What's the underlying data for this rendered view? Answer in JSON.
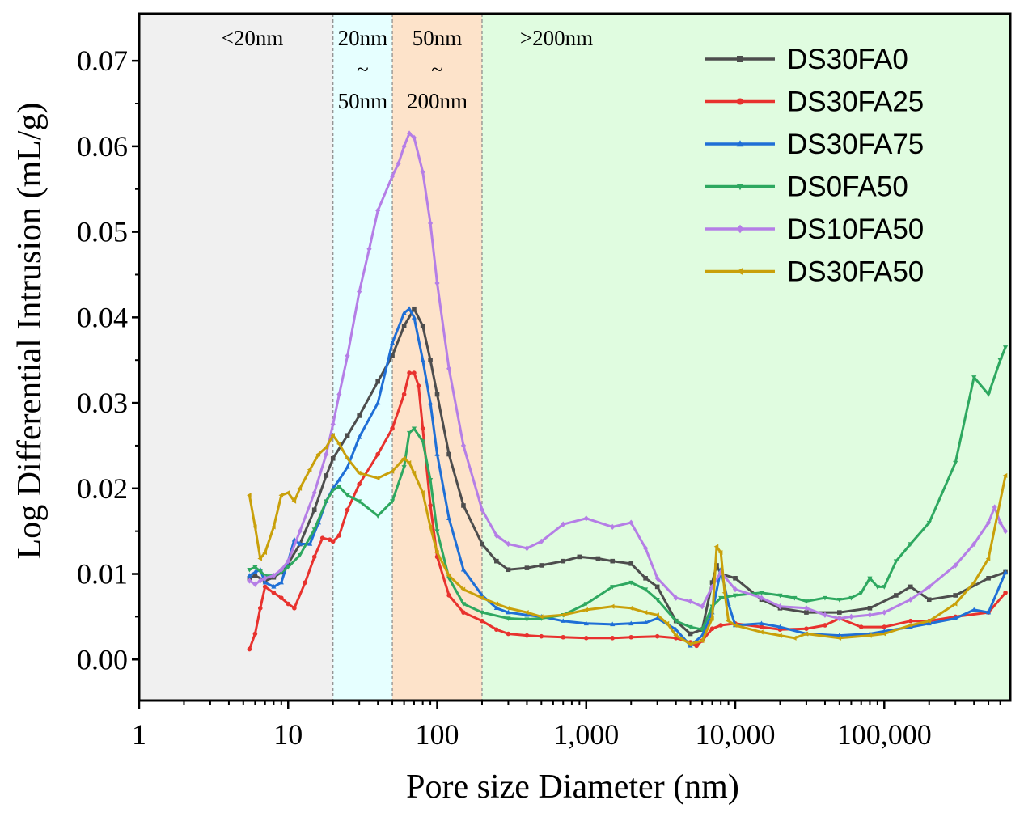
{
  "chart_data": {
    "type": "line",
    "xscale": "log",
    "xlabel": "Pore size Diameter (nm)",
    "ylabel": "Log Differential Intrusion (mL/g)",
    "xlim": [
      1,
      700000
    ],
    "ylim": [
      -0.0048,
      0.0755
    ],
    "x_ticks": [
      {
        "value": 1,
        "label": "1"
      },
      {
        "value": 10,
        "label": "10"
      },
      {
        "value": 100,
        "label": "100"
      },
      {
        "value": 1000,
        "label": "1,000"
      },
      {
        "value": 10000,
        "label": "10,000"
      },
      {
        "value": 100000,
        "label": "100,000"
      }
    ],
    "y_ticks": [
      {
        "value": 0.0,
        "label": "0.00"
      },
      {
        "value": 0.01,
        "label": "0.01"
      },
      {
        "value": 0.02,
        "label": "0.02"
      },
      {
        "value": 0.03,
        "label": "0.03"
      },
      {
        "value": 0.04,
        "label": "0.04"
      },
      {
        "value": 0.05,
        "label": "0.05"
      },
      {
        "value": 0.06,
        "label": "0.06"
      },
      {
        "value": 0.07,
        "label": "0.07"
      }
    ],
    "regions": [
      {
        "from": 1,
        "to": 20,
        "color": "#f0f0f0",
        "label_lines": [
          "<20nm"
        ]
      },
      {
        "from": 20,
        "to": 50,
        "color": "#e6ffff",
        "label_lines": [
          "20nm",
          "~",
          "50nm"
        ]
      },
      {
        "from": 50,
        "to": 200,
        "color": "#fde3ca",
        "label_lines": [
          "50nm",
          "~",
          "200nm"
        ]
      },
      {
        "from": 200,
        "to": 700000,
        "color": "#e0fce0",
        "label_lines": [
          ">200nm"
        ]
      }
    ],
    "legend_position": "top-right",
    "series": [
      {
        "name": "DS30FA0",
        "color": "#4d4d4d",
        "marker": "square",
        "x": [
          5.5,
          6,
          7,
          8,
          9,
          10,
          12,
          15,
          18,
          20,
          25,
          30,
          40,
          50,
          60,
          70,
          80,
          90,
          100,
          120,
          150,
          200,
          250,
          300,
          400,
          500,
          700,
          900,
          1200,
          1500,
          2000,
          2500,
          3000,
          4000,
          5000,
          6000,
          7000,
          7500,
          8000,
          10000,
          15000,
          20000,
          30000,
          50000,
          80000,
          120000,
          150000,
          200000,
          300000,
          500000,
          650000
        ],
        "values": [
          0.0095,
          0.0098,
          0.0092,
          0.0096,
          0.0102,
          0.0112,
          0.0135,
          0.0175,
          0.0215,
          0.0235,
          0.0262,
          0.0285,
          0.0325,
          0.0355,
          0.039,
          0.041,
          0.039,
          0.035,
          0.031,
          0.024,
          0.018,
          0.0135,
          0.0115,
          0.0105,
          0.0107,
          0.011,
          0.0115,
          0.012,
          0.0118,
          0.0115,
          0.0112,
          0.0095,
          0.0085,
          0.0045,
          0.003,
          0.0035,
          0.009,
          0.011,
          0.01,
          0.0095,
          0.007,
          0.006,
          0.0055,
          0.0055,
          0.006,
          0.0075,
          0.0085,
          0.007,
          0.0075,
          0.0095,
          0.0102
        ]
      },
      {
        "name": "DS30FA25",
        "color": "#e8322e",
        "marker": "circle",
        "x": [
          5.5,
          6,
          6.5,
          7,
          8,
          9,
          10,
          11,
          13,
          15,
          17,
          19,
          20,
          22,
          25,
          30,
          40,
          50,
          60,
          65,
          70,
          75,
          80,
          90,
          100,
          120,
          150,
          200,
          250,
          300,
          400,
          500,
          700,
          1000,
          1500,
          2000,
          3000,
          4000,
          5000,
          5500,
          6000,
          7000,
          8000,
          10000,
          15000,
          20000,
          30000,
          40000,
          50000,
          70000,
          100000,
          150000,
          200000,
          300000,
          500000,
          650000
        ],
        "values": [
          0.0012,
          0.003,
          0.006,
          0.0085,
          0.0078,
          0.0072,
          0.0065,
          0.006,
          0.009,
          0.012,
          0.0142,
          0.014,
          0.0138,
          0.0145,
          0.0175,
          0.0205,
          0.024,
          0.027,
          0.031,
          0.0335,
          0.0335,
          0.032,
          0.027,
          0.018,
          0.012,
          0.0075,
          0.0055,
          0.0045,
          0.0035,
          0.003,
          0.0028,
          0.0027,
          0.0026,
          0.0025,
          0.0025,
          0.0026,
          0.0027,
          0.0025,
          0.002,
          0.0016,
          0.0022,
          0.0036,
          0.004,
          0.0042,
          0.0038,
          0.0035,
          0.0036,
          0.004,
          0.0048,
          0.0038,
          0.0038,
          0.0045,
          0.0045,
          0.005,
          0.0055,
          0.0078
        ]
      },
      {
        "name": "DS30FA75",
        "color": "#1f6fd6",
        "marker": "triangle",
        "x": [
          5.5,
          6,
          6.5,
          7,
          8,
          9,
          10,
          11,
          12,
          14,
          16,
          18,
          20,
          22,
          25,
          30,
          40,
          50,
          60,
          65,
          70,
          80,
          90,
          100,
          120,
          150,
          200,
          250,
          300,
          400,
          500,
          700,
          1000,
          1500,
          2000,
          2500,
          3000,
          4000,
          5000,
          6000,
          7000,
          8000,
          9000,
          10000,
          15000,
          20000,
          30000,
          50000,
          80000,
          100000,
          150000,
          200000,
          300000,
          400000,
          500000,
          650000
        ],
        "values": [
          0.0098,
          0.0102,
          0.0105,
          0.009,
          0.0085,
          0.009,
          0.0115,
          0.014,
          0.0135,
          0.0135,
          0.016,
          0.0185,
          0.02,
          0.021,
          0.0225,
          0.026,
          0.03,
          0.037,
          0.0405,
          0.041,
          0.04,
          0.035,
          0.03,
          0.024,
          0.0165,
          0.0105,
          0.0075,
          0.006,
          0.0055,
          0.0052,
          0.005,
          0.0045,
          0.0042,
          0.0041,
          0.0042,
          0.0043,
          0.0048,
          0.0035,
          0.0016,
          0.0028,
          0.0055,
          0.0105,
          0.0065,
          0.004,
          0.0042,
          0.0038,
          0.003,
          0.0028,
          0.003,
          0.0033,
          0.0038,
          0.0042,
          0.0048,
          0.0058,
          0.0055,
          0.0102
        ]
      },
      {
        "name": "DS0FA50",
        "color": "#2ea860",
        "marker": "triangle-down",
        "x": [
          5.5,
          6,
          6.5,
          7,
          8,
          9,
          10,
          12,
          15,
          18,
          20,
          22,
          25,
          30,
          40,
          50,
          60,
          65,
          70,
          80,
          90,
          100,
          120,
          150,
          200,
          300,
          400,
          500,
          700,
          1000,
          1500,
          2000,
          2500,
          3000,
          4000,
          5000,
          6000,
          7000,
          8000,
          10000,
          15000,
          20000,
          25000,
          30000,
          40000,
          50000,
          60000,
          70000,
          80000,
          90000,
          100000,
          120000,
          150000,
          200000,
          300000,
          400000,
          500000,
          600000,
          650000
        ],
        "values": [
          0.0105,
          0.0108,
          0.0103,
          0.0098,
          0.0098,
          0.0102,
          0.0108,
          0.0122,
          0.0152,
          0.0185,
          0.0198,
          0.0202,
          0.0192,
          0.0185,
          0.0168,
          0.0185,
          0.0225,
          0.0265,
          0.027,
          0.0255,
          0.021,
          0.015,
          0.0095,
          0.0065,
          0.0055,
          0.0048,
          0.0047,
          0.0048,
          0.0052,
          0.0065,
          0.0085,
          0.009,
          0.0082,
          0.007,
          0.0045,
          0.0038,
          0.0035,
          0.0062,
          0.0072,
          0.0075,
          0.0078,
          0.0075,
          0.0072,
          0.0068,
          0.0072,
          0.007,
          0.0072,
          0.0078,
          0.0095,
          0.0085,
          0.0085,
          0.0115,
          0.0135,
          0.016,
          0.023,
          0.033,
          0.031,
          0.035,
          0.0365
        ]
      },
      {
        "name": "DS10FA50",
        "color": "#b57ee6",
        "marker": "diamond",
        "x": [
          5.5,
          6,
          6.5,
          7,
          8,
          9,
          10,
          12,
          15,
          18,
          20,
          22,
          25,
          30,
          35,
          40,
          50,
          55,
          60,
          65,
          70,
          80,
          90,
          100,
          120,
          150,
          200,
          250,
          300,
          400,
          500,
          700,
          1000,
          1500,
          2000,
          2500,
          3000,
          4000,
          5000,
          6000,
          7000,
          8000,
          10000,
          15000,
          20000,
          30000,
          40000,
          50000,
          60000,
          80000,
          100000,
          150000,
          200000,
          300000,
          400000,
          500000,
          550000,
          600000,
          650000
        ],
        "values": [
          0.0092,
          0.0088,
          0.0092,
          0.0095,
          0.0098,
          0.0105,
          0.0115,
          0.015,
          0.0195,
          0.024,
          0.0275,
          0.031,
          0.0355,
          0.043,
          0.048,
          0.0525,
          0.0565,
          0.058,
          0.06,
          0.0615,
          0.061,
          0.057,
          0.051,
          0.044,
          0.034,
          0.025,
          0.0175,
          0.0145,
          0.0135,
          0.013,
          0.0138,
          0.0158,
          0.0165,
          0.0155,
          0.016,
          0.013,
          0.0095,
          0.0072,
          0.0068,
          0.0062,
          0.0085,
          0.0102,
          0.0082,
          0.0072,
          0.0062,
          0.006,
          0.0052,
          0.0048,
          0.005,
          0.0052,
          0.0055,
          0.007,
          0.0085,
          0.011,
          0.0135,
          0.016,
          0.0178,
          0.016,
          0.015
        ]
      },
      {
        "name": "DS30FA50",
        "color": "#c9a00a",
        "marker": "triangle-left",
        "x": [
          5.5,
          6,
          6.5,
          7,
          8,
          9,
          10,
          11,
          12,
          14,
          16,
          18,
          20,
          22,
          25,
          30,
          40,
          50,
          60,
          65,
          70,
          80,
          90,
          100,
          120,
          150,
          200,
          250,
          300,
          400,
          500,
          700,
          1000,
          1500,
          2000,
          2500,
          3000,
          3500,
          4000,
          5000,
          6000,
          7000,
          7500,
          8000,
          8500,
          9000,
          10000,
          15000,
          20000,
          25000,
          30000,
          50000,
          80000,
          100000,
          150000,
          200000,
          300000,
          400000,
          500000,
          650000
        ],
        "values": [
          0.0192,
          0.0155,
          0.0118,
          0.0125,
          0.0155,
          0.0192,
          0.0195,
          0.0185,
          0.02,
          0.0222,
          0.024,
          0.0248,
          0.0262,
          0.0252,
          0.0235,
          0.0218,
          0.0212,
          0.022,
          0.0235,
          0.023,
          0.0218,
          0.0195,
          0.0155,
          0.0125,
          0.0098,
          0.0082,
          0.0072,
          0.0065,
          0.006,
          0.0055,
          0.005,
          0.0052,
          0.0058,
          0.0062,
          0.006,
          0.0055,
          0.0052,
          0.0042,
          0.0028,
          0.0018,
          0.0022,
          0.0048,
          0.0132,
          0.0125,
          0.0078,
          0.0045,
          0.004,
          0.0032,
          0.0028,
          0.0025,
          0.003,
          0.0025,
          0.0028,
          0.003,
          0.004,
          0.0045,
          0.0065,
          0.009,
          0.0118,
          0.0215
        ]
      }
    ]
  }
}
